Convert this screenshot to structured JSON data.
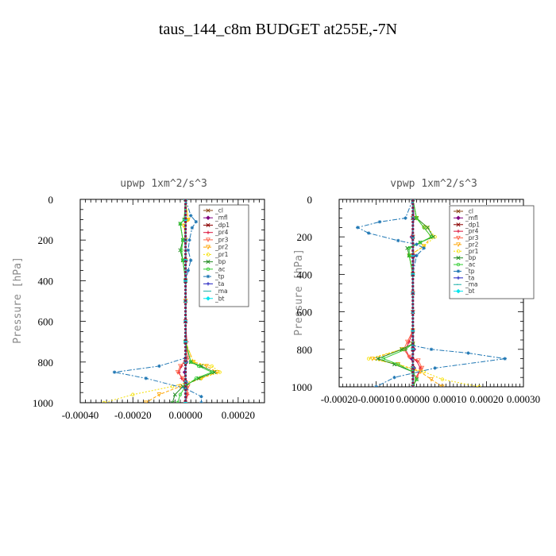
{
  "figure": {
    "title": "taus_144_c8m  BUDGET at255E,-7N"
  },
  "chart_data": [
    {
      "type": "line",
      "title": "upwp  1xm^2/s^3",
      "ylabel": "Pressure [hPa]",
      "xlabel": "",
      "xlim": [
        -0.0004,
        0.0003
      ],
      "ylim": [
        1000,
        0
      ],
      "xticks": [
        -0.0004,
        -0.0002,
        0.0,
        0.0002
      ],
      "xticklabels": [
        "-0.00040",
        "-0.00020",
        "0.00000",
        "0.00020"
      ],
      "yticks": [
        0,
        200,
        400,
        600,
        800,
        1000
      ],
      "yticklabels": [
        "0",
        "200",
        "400",
        "600",
        "800",
        "1000"
      ],
      "grid": false,
      "legend_position": "top-right",
      "series": [
        {
          "name": "_cl",
          "color": "#8B4513",
          "marker": "x",
          "x": [
            0,
            0,
            0,
            0,
            0,
            0,
            0,
            0,
            0,
            0,
            0
          ],
          "y": [
            0,
            100,
            200,
            300,
            400,
            500,
            600,
            700,
            800,
            900,
            1000
          ]
        },
        {
          "name": "_mfl",
          "color": "#800080",
          "marker": "diamond",
          "x": [
            0,
            2e-06,
            -2e-06,
            2e-06,
            0,
            0,
            0,
            0,
            3e-06,
            -3e-06,
            2e-06,
            0
          ],
          "y": [
            0,
            100,
            200,
            300,
            400,
            500,
            600,
            700,
            800,
            850,
            900,
            1000
          ]
        },
        {
          "name": "_dp1",
          "color": "#8B0000",
          "marker": "x",
          "x": [
            0,
            0,
            0,
            0,
            0,
            0,
            0,
            0,
            0,
            0,
            0
          ],
          "y": [
            0,
            100,
            200,
            300,
            400,
            500,
            600,
            700,
            800,
            900,
            1000
          ]
        },
        {
          "name": "_pr4",
          "color": "#dc143c",
          "marker": "plus",
          "x": [
            0,
            0,
            0,
            0,
            0,
            0,
            0,
            5e-06,
            0,
            -1.5e-05,
            -2.5e-05,
            -1.5e-05,
            5e-06,
            8e-06,
            0
          ],
          "y": [
            0,
            100,
            200,
            300,
            400,
            500,
            600,
            700,
            780,
            820,
            850,
            880,
            920,
            960,
            1000
          ]
        },
        {
          "name": "_pr3",
          "color": "#ff6347",
          "marker": "triangle",
          "x": [
            0,
            0,
            0,
            0,
            0,
            0,
            0,
            0,
            1e-05,
            -2e-05,
            -3e-05,
            -1e-05,
            1e-05,
            5e-06,
            0
          ],
          "y": [
            0,
            100,
            200,
            300,
            400,
            500,
            600,
            700,
            780,
            820,
            850,
            880,
            920,
            960,
            1000
          ]
        },
        {
          "name": "_pr2",
          "color": "#ffa500",
          "marker": "triangle",
          "x": [
            0,
            1e-05,
            -5e-06,
            0,
            0,
            0,
            0,
            0,
            3e-05,
            8e-05,
            0.00012,
            6e-05,
            -2e-05,
            -0.0001,
            -0.00015
          ],
          "y": [
            0,
            100,
            130,
            200,
            300,
            400,
            500,
            700,
            800,
            820,
            850,
            880,
            920,
            960,
            1000
          ]
        },
        {
          "name": "_pr1",
          "color": "#f5e000",
          "marker": "circle",
          "x": [
            0,
            1e-05,
            -5e-06,
            0,
            0,
            0,
            0,
            0,
            3e-05,
            0.0001,
            0.00013,
            6e-05,
            -5e-05,
            -0.0002,
            -0.00031
          ],
          "y": [
            0,
            100,
            130,
            200,
            300,
            400,
            500,
            700,
            800,
            820,
            850,
            880,
            920,
            960,
            1000
          ]
        },
        {
          "name": "_bp",
          "color": "#228B22",
          "marker": "x",
          "x": [
            0,
            -5e-06,
            -2e-05,
            -1e-05,
            -2e-05,
            -1e-05,
            0,
            0,
            2e-05,
            6e-05,
            0.00011,
            5e-05,
            -1e-05,
            -4e-05,
            -5e-05
          ],
          "y": [
            0,
            100,
            120,
            200,
            250,
            300,
            400,
            700,
            800,
            820,
            850,
            880,
            920,
            960,
            1000
          ]
        },
        {
          "name": "_ac",
          "color": "#32cd32",
          "marker": "circle",
          "x": [
            0,
            -5e-06,
            -2e-05,
            -1e-05,
            -1.5e-05,
            -1e-05,
            0,
            0,
            2e-05,
            5e-05,
            0.0001,
            4e-05,
            0,
            -2e-05,
            -3e-05
          ],
          "y": [
            0,
            100,
            120,
            200,
            250,
            300,
            400,
            700,
            800,
            820,
            850,
            880,
            920,
            960,
            1000
          ]
        },
        {
          "name": "_tp",
          "color": "#1f77b4",
          "marker": "star",
          "x": [
            0,
            2e-05,
            4e-05,
            2.5e-05,
            1.5e-05,
            1e-05,
            2e-05,
            1e-05,
            0,
            0,
            0,
            -0.0001,
            -0.00027,
            -0.00015,
            0,
            6e-05,
            6e-05
          ],
          "y": [
            0,
            80,
            110,
            140,
            200,
            250,
            300,
            350,
            400,
            700,
            780,
            820,
            850,
            880,
            930,
            970,
            1000
          ]
        },
        {
          "name": "_ta",
          "color": "#2020c0",
          "marker": "plus",
          "x": [
            0,
            0,
            0,
            0,
            0,
            0,
            0,
            0,
            0,
            0,
            0
          ],
          "y": [
            0,
            100,
            200,
            300,
            400,
            500,
            600,
            700,
            800,
            900,
            1000
          ]
        },
        {
          "name": "_ma",
          "color": "#20b2aa",
          "marker": "dash",
          "x": [
            0,
            0,
            0,
            0,
            0,
            0,
            0,
            0,
            0,
            0,
            0
          ],
          "y": [
            0,
            100,
            200,
            300,
            400,
            500,
            600,
            700,
            800,
            900,
            1000
          ]
        },
        {
          "name": "_bt",
          "color": "#00e5ee",
          "marker": "diamond",
          "x": [
            0,
            0,
            0,
            0,
            0,
            0,
            0,
            0,
            0,
            0,
            0
          ],
          "y": [
            0,
            100,
            200,
            300,
            400,
            500,
            600,
            700,
            800,
            900,
            1000
          ]
        }
      ]
    },
    {
      "type": "line",
      "title": "vpwp  1xm^2/s^3",
      "ylabel": "Pressure [hPa]",
      "xlabel": "",
      "xlim": [
        -0.0002,
        0.0003
      ],
      "ylim": [
        1000,
        0
      ],
      "xticks": [
        -0.0002,
        -0.0001,
        0.0,
        0.0001,
        0.0002,
        0.0003
      ],
      "xticklabels": [
        "-0.00020",
        "-0.00010",
        "0.00000",
        "0.00010",
        "0.00020",
        "0.00030"
      ],
      "yticks": [
        0,
        200,
        400,
        600,
        800,
        1000
      ],
      "yticklabels": [
        "0",
        "200",
        "400",
        "600",
        "800",
        "1000"
      ],
      "grid": false,
      "legend_position": "top-right",
      "series": [
        {
          "name": "_cl",
          "color": "#8B4513",
          "marker": "x",
          "x": [
            0,
            0,
            0,
            0,
            0,
            0,
            0,
            0,
            0,
            0,
            0
          ],
          "y": [
            0,
            100,
            200,
            300,
            400,
            500,
            600,
            700,
            800,
            900,
            1000
          ]
        },
        {
          "name": "_mfl",
          "color": "#800080",
          "marker": "diamond",
          "x": [
            0,
            3e-06,
            -3e-06,
            3e-06,
            0,
            0,
            0,
            3e-06,
            -3e-06,
            3e-06,
            0
          ],
          "y": [
            0,
            100,
            200,
            300,
            400,
            500,
            700,
            800,
            850,
            900,
            1000
          ]
        },
        {
          "name": "_dp1",
          "color": "#8B0000",
          "marker": "x",
          "x": [
            0,
            0,
            0,
            0,
            0,
            0,
            0,
            0,
            0,
            0,
            0
          ],
          "y": [
            0,
            100,
            200,
            300,
            400,
            500,
            600,
            700,
            800,
            900,
            1000
          ]
        },
        {
          "name": "_pr4",
          "color": "#dc143c",
          "marker": "plus",
          "x": [
            0,
            0,
            0,
            0,
            0,
            0,
            0,
            0,
            -1e-05,
            -2e-05,
            -1e-05,
            1e-05,
            2e-05,
            1e-05,
            0
          ],
          "y": [
            0,
            100,
            200,
            300,
            400,
            500,
            600,
            700,
            760,
            800,
            840,
            860,
            900,
            950,
            1000
          ]
        },
        {
          "name": "_pr3",
          "color": "#ff6347",
          "marker": "triangle",
          "x": [
            0,
            0,
            0,
            0,
            0,
            0,
            0,
            0,
            -1.5e-05,
            -2.5e-05,
            -1e-05,
            1.5e-05,
            2.5e-05,
            1e-05,
            0
          ],
          "y": [
            0,
            100,
            200,
            300,
            400,
            500,
            600,
            700,
            760,
            800,
            840,
            860,
            900,
            950,
            1000
          ]
        },
        {
          "name": "_pr2",
          "color": "#ffa500",
          "marker": "triangle",
          "x": [
            0,
            1e-05,
            3e-05,
            5e-05,
            3e-05,
            -1e-05,
            0,
            0,
            0,
            -3e-05,
            -0.00011,
            -4e-05,
            2e-05,
            5e-05,
            8e-05
          ],
          "y": [
            0,
            100,
            150,
            200,
            250,
            300,
            400,
            700,
            770,
            800,
            850,
            880,
            920,
            960,
            1000
          ]
        },
        {
          "name": "_pr1",
          "color": "#f5e000",
          "marker": "circle",
          "x": [
            0,
            1e-05,
            4e-05,
            6e-05,
            3e-05,
            -1e-05,
            0,
            0,
            0,
            -3e-05,
            -0.00012,
            -4e-05,
            3e-05,
            8e-05,
            0.00018
          ],
          "y": [
            0,
            100,
            150,
            200,
            250,
            300,
            400,
            700,
            770,
            800,
            850,
            880,
            920,
            960,
            1000
          ]
        },
        {
          "name": "_bp",
          "color": "#228B22",
          "marker": "x",
          "x": [
            0,
            1e-05,
            4e-05,
            5.5e-05,
            2e-05,
            -1.5e-05,
            -1e-05,
            0,
            0,
            -3e-05,
            -9.5e-05,
            -5e-05,
            0,
            1e-05,
            0
          ],
          "y": [
            0,
            100,
            150,
            200,
            230,
            260,
            300,
            400,
            770,
            800,
            850,
            880,
            920,
            960,
            1000
          ]
        },
        {
          "name": "_ac",
          "color": "#32cd32",
          "marker": "circle",
          "x": [
            0,
            1e-05,
            3e-05,
            5e-05,
            2e-05,
            -1e-05,
            -1e-05,
            0,
            0,
            -2e-05,
            -8e-05,
            -4e-05,
            0,
            1e-05,
            0
          ],
          "y": [
            0,
            100,
            150,
            200,
            230,
            260,
            300,
            400,
            770,
            800,
            850,
            880,
            920,
            960,
            1000
          ]
        },
        {
          "name": "_tp",
          "color": "#1f77b4",
          "marker": "star",
          "x": [
            0,
            -2e-05,
            -9e-05,
            -0.00015,
            -0.00012,
            -4e-05,
            1e-05,
            3e-05,
            1e-05,
            0,
            0,
            5e-05,
            0.00015,
            0.00025,
            6e-05,
            -5e-05,
            -0.0001
          ],
          "y": [
            0,
            100,
            120,
            150,
            180,
            220,
            240,
            260,
            300,
            400,
            780,
            800,
            820,
            850,
            900,
            950,
            1000
          ]
        },
        {
          "name": "_ta",
          "color": "#2020c0",
          "marker": "plus",
          "x": [
            0,
            0,
            0,
            0,
            0,
            0,
            0,
            0,
            0,
            0,
            0
          ],
          "y": [
            0,
            100,
            200,
            300,
            400,
            500,
            600,
            700,
            800,
            900,
            1000
          ]
        },
        {
          "name": "_ma",
          "color": "#20b2aa",
          "marker": "dash",
          "x": [
            0,
            0,
            0,
            0,
            0,
            0,
            0,
            0,
            0,
            0,
            0
          ],
          "y": [
            0,
            100,
            200,
            300,
            400,
            500,
            600,
            700,
            800,
            900,
            1000
          ]
        },
        {
          "name": "_bt",
          "color": "#00e5ee",
          "marker": "diamond",
          "x": [
            0,
            0,
            0,
            0,
            0,
            0,
            0,
            0,
            0,
            0,
            0
          ],
          "y": [
            0,
            100,
            200,
            300,
            400,
            500,
            600,
            700,
            800,
            900,
            1000
          ]
        }
      ]
    }
  ]
}
